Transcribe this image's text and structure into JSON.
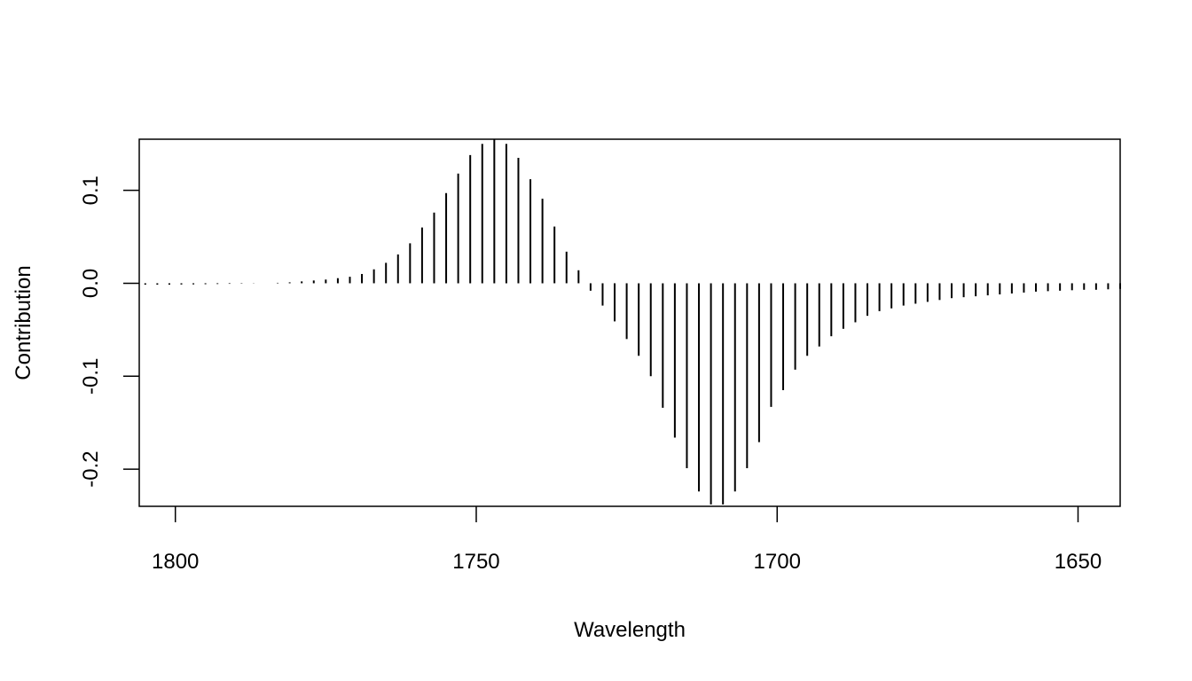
{
  "chart_data": {
    "type": "bar",
    "subtype": "histogram-spikes",
    "title": "",
    "xlabel": "Wavelength",
    "ylabel": "Contribution",
    "x_reversed": true,
    "xlim": [
      1806,
      1643
    ],
    "ylim": [
      -0.24,
      0.155
    ],
    "x_ticks": [
      1800,
      1750,
      1700,
      1650
    ],
    "x_tick_labels": [
      "1800",
      "1750",
      "1700",
      "1650"
    ],
    "y_ticks": [
      -0.2,
      -0.1,
      0.0,
      0.1
    ],
    "y_tick_labels": [
      "-0.2",
      "-0.1",
      "0.0",
      "0.1"
    ],
    "grid": false,
    "legend": "none",
    "colors": {
      "lines": "#000000",
      "background": "#ffffff"
    },
    "x": [
      1805,
      1803,
      1801,
      1799,
      1797,
      1795,
      1793,
      1791,
      1789,
      1787,
      1785,
      1783,
      1781,
      1779,
      1777,
      1775,
      1773,
      1771,
      1769,
      1767,
      1765,
      1763,
      1761,
      1759,
      1757,
      1755,
      1753,
      1751,
      1749,
      1747,
      1745,
      1743,
      1741,
      1739,
      1737,
      1735,
      1733,
      1731,
      1729,
      1727,
      1725,
      1723,
      1721,
      1719,
      1717,
      1715,
      1713,
      1711,
      1709,
      1707,
      1705,
      1703,
      1701,
      1699,
      1697,
      1695,
      1693,
      1691,
      1689,
      1687,
      1685,
      1683,
      1681,
      1679,
      1677,
      1675,
      1673,
      1671,
      1669,
      1667,
      1665,
      1663,
      1661,
      1659,
      1657,
      1655,
      1653,
      1651,
      1649,
      1647,
      1645,
      1643
    ],
    "values": [
      -0.0015,
      -0.0015,
      -0.0015,
      -0.0013,
      -0.0012,
      -0.001,
      -0.0008,
      -0.0006,
      -0.0004,
      -0.0002,
      0.0,
      0.0005,
      0.001,
      0.002,
      0.003,
      0.004,
      0.0055,
      0.007,
      0.01,
      0.015,
      0.022,
      0.031,
      0.043,
      0.06,
      0.076,
      0.097,
      0.118,
      0.138,
      0.15,
      0.155,
      0.15,
      0.135,
      0.112,
      0.091,
      0.061,
      0.034,
      0.014,
      -0.008,
      -0.024,
      -0.041,
      -0.06,
      -0.078,
      -0.1,
      -0.134,
      -0.166,
      -0.199,
      -0.224,
      -0.238,
      -0.238,
      -0.224,
      -0.199,
      -0.171,
      -0.133,
      -0.115,
      -0.093,
      -0.078,
      -0.068,
      -0.057,
      -0.049,
      -0.042,
      -0.035,
      -0.03,
      -0.027,
      -0.024,
      -0.022,
      -0.02,
      -0.018,
      -0.016,
      -0.015,
      -0.014,
      -0.013,
      -0.012,
      -0.011,
      -0.01,
      -0.009,
      -0.0085,
      -0.008,
      -0.0075,
      -0.007,
      -0.007,
      -0.0065,
      -0.006
    ]
  }
}
